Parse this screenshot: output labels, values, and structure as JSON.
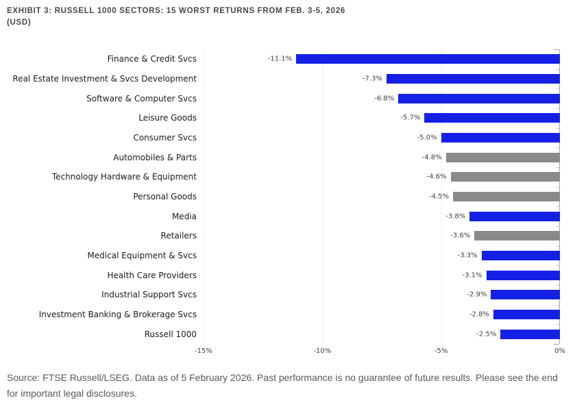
{
  "header": {
    "title_line1": "EXHIBIT 3: RUSSELL 1000 SECTORS: 15 WORST RETURNS FROM FEB. 3-5, 2026",
    "title_line2": "(USD)"
  },
  "chart_data": {
    "type": "bar",
    "orientation": "horizontal",
    "title": "EXHIBIT 3: RUSSELL 1000 SECTORS: 15 WORST RETURNS FROM FEB. 3-5, 2026 (USD)",
    "categories": [
      "Finance & Credit Svcs",
      "Real Estate Investment & Svcs Development",
      "Software & Computer Svcs",
      "Leisure Goods",
      "Consumer Svcs",
      "Automobiles & Parts",
      "Technology Hardware & Equipment",
      "Personal Goods",
      "Media",
      "Retailers",
      "Medical Equipment & Svcs",
      "Health Care Providers",
      "Industrial Support Svcs",
      "Investment Banking & Brokerage Svcs",
      "Russell 1000"
    ],
    "values": [
      -11.1,
      -7.3,
      -6.8,
      -5.7,
      -5.0,
      -4.8,
      -4.6,
      -4.5,
      -3.8,
      -3.6,
      -3.3,
      -3.1,
      -2.9,
      -2.8,
      -2.5
    ],
    "value_labels": [
      "-11.1%",
      "-7.3%",
      "-6.8%",
      "-5.7%",
      "-5.0%",
      "-4.8%",
      "-4.6%",
      "-4.5%",
      "-3.8%",
      "-3.6%",
      "-3.3%",
      "-3.1%",
      "-2.9%",
      "-2.8%",
      "-2.5%"
    ],
    "bar_colors": [
      "blue",
      "blue",
      "blue",
      "blue",
      "blue",
      "gray",
      "gray",
      "gray",
      "blue",
      "gray",
      "blue",
      "blue",
      "blue",
      "blue",
      "blue"
    ],
    "colors": {
      "blue": "#1420e6",
      "gray": "#8a8a8a"
    },
    "xlabel": "",
    "ylabel": "",
    "xlim": [
      -15,
      0
    ],
    "x_ticks": [
      "-15%",
      "-10%",
      "-5%",
      "0%"
    ],
    "x_tick_positions_pct": [
      0,
      33.333,
      66.667,
      100
    ],
    "grid": "vertical dotted gridlines at ticks, solid axis at 0%",
    "legend": "none",
    "value_label_position": "left of bar end"
  },
  "footer": {
    "text": "Source: FTSE Russell/LSEG. Data as of 5 February 2026. Past performance is no guarantee of future results. Please see the end for important legal disclosures."
  }
}
